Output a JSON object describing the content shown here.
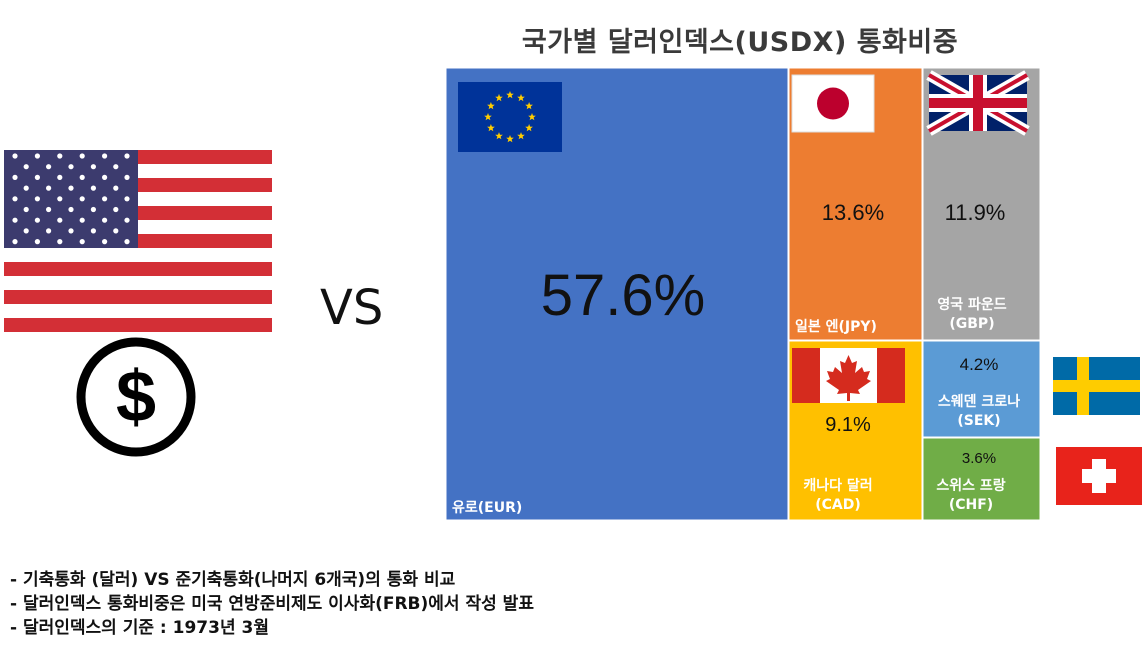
{
  "chart_data": {
    "type": "treemap",
    "title": "국가별 달러인덱스(USDX) 통화비중",
    "items": [
      {
        "id": "eur",
        "label": "유로(EUR)",
        "value": 57.6,
        "value_label": "57.6%",
        "color": "#4472c4",
        "flag": "eu-flag-icon"
      },
      {
        "id": "jpy",
        "label": "일본 엔(JPY)",
        "value": 13.6,
        "value_label": "13.6%",
        "color": "#ed7d31",
        "flag": "japan-flag-icon"
      },
      {
        "id": "gbp",
        "label": "영국 파운드\n(GBP)",
        "value": 11.9,
        "value_label": "11.9%",
        "color": "#a5a5a5",
        "flag": "uk-flag-icon"
      },
      {
        "id": "cad",
        "label": "캐나다 달러\n(CAD)",
        "value": 9.1,
        "value_label": "9.1%",
        "color": "#ffc000",
        "flag": "canada-flag-icon"
      },
      {
        "id": "sek",
        "label": "스웨덴 크로나\n(SEK)",
        "value": 4.2,
        "value_label": "4.2%",
        "color": "#5b9bd5",
        "flag": "sweden-flag-icon"
      },
      {
        "id": "chf",
        "label": "스위스 프랑\n(CHF)",
        "value": 3.6,
        "value_label": "3.6%",
        "color": "#70ad47",
        "flag": "switzerland-flag-icon"
      }
    ]
  },
  "left_panel": {
    "vs_label": "VS",
    "icons": [
      "us-flag-icon",
      "dollar-coin-icon"
    ]
  },
  "notes": [
    "- 기축통화 (달러) VS 준기축통화(나머지 6개국)의 통화 비교",
    "- 달러인덱스 통화비중은 미국 연방준비제도 이사화(FRB)에서 작성 발표",
    "- 달러인덱스의 기준 : 1973년 3월"
  ]
}
